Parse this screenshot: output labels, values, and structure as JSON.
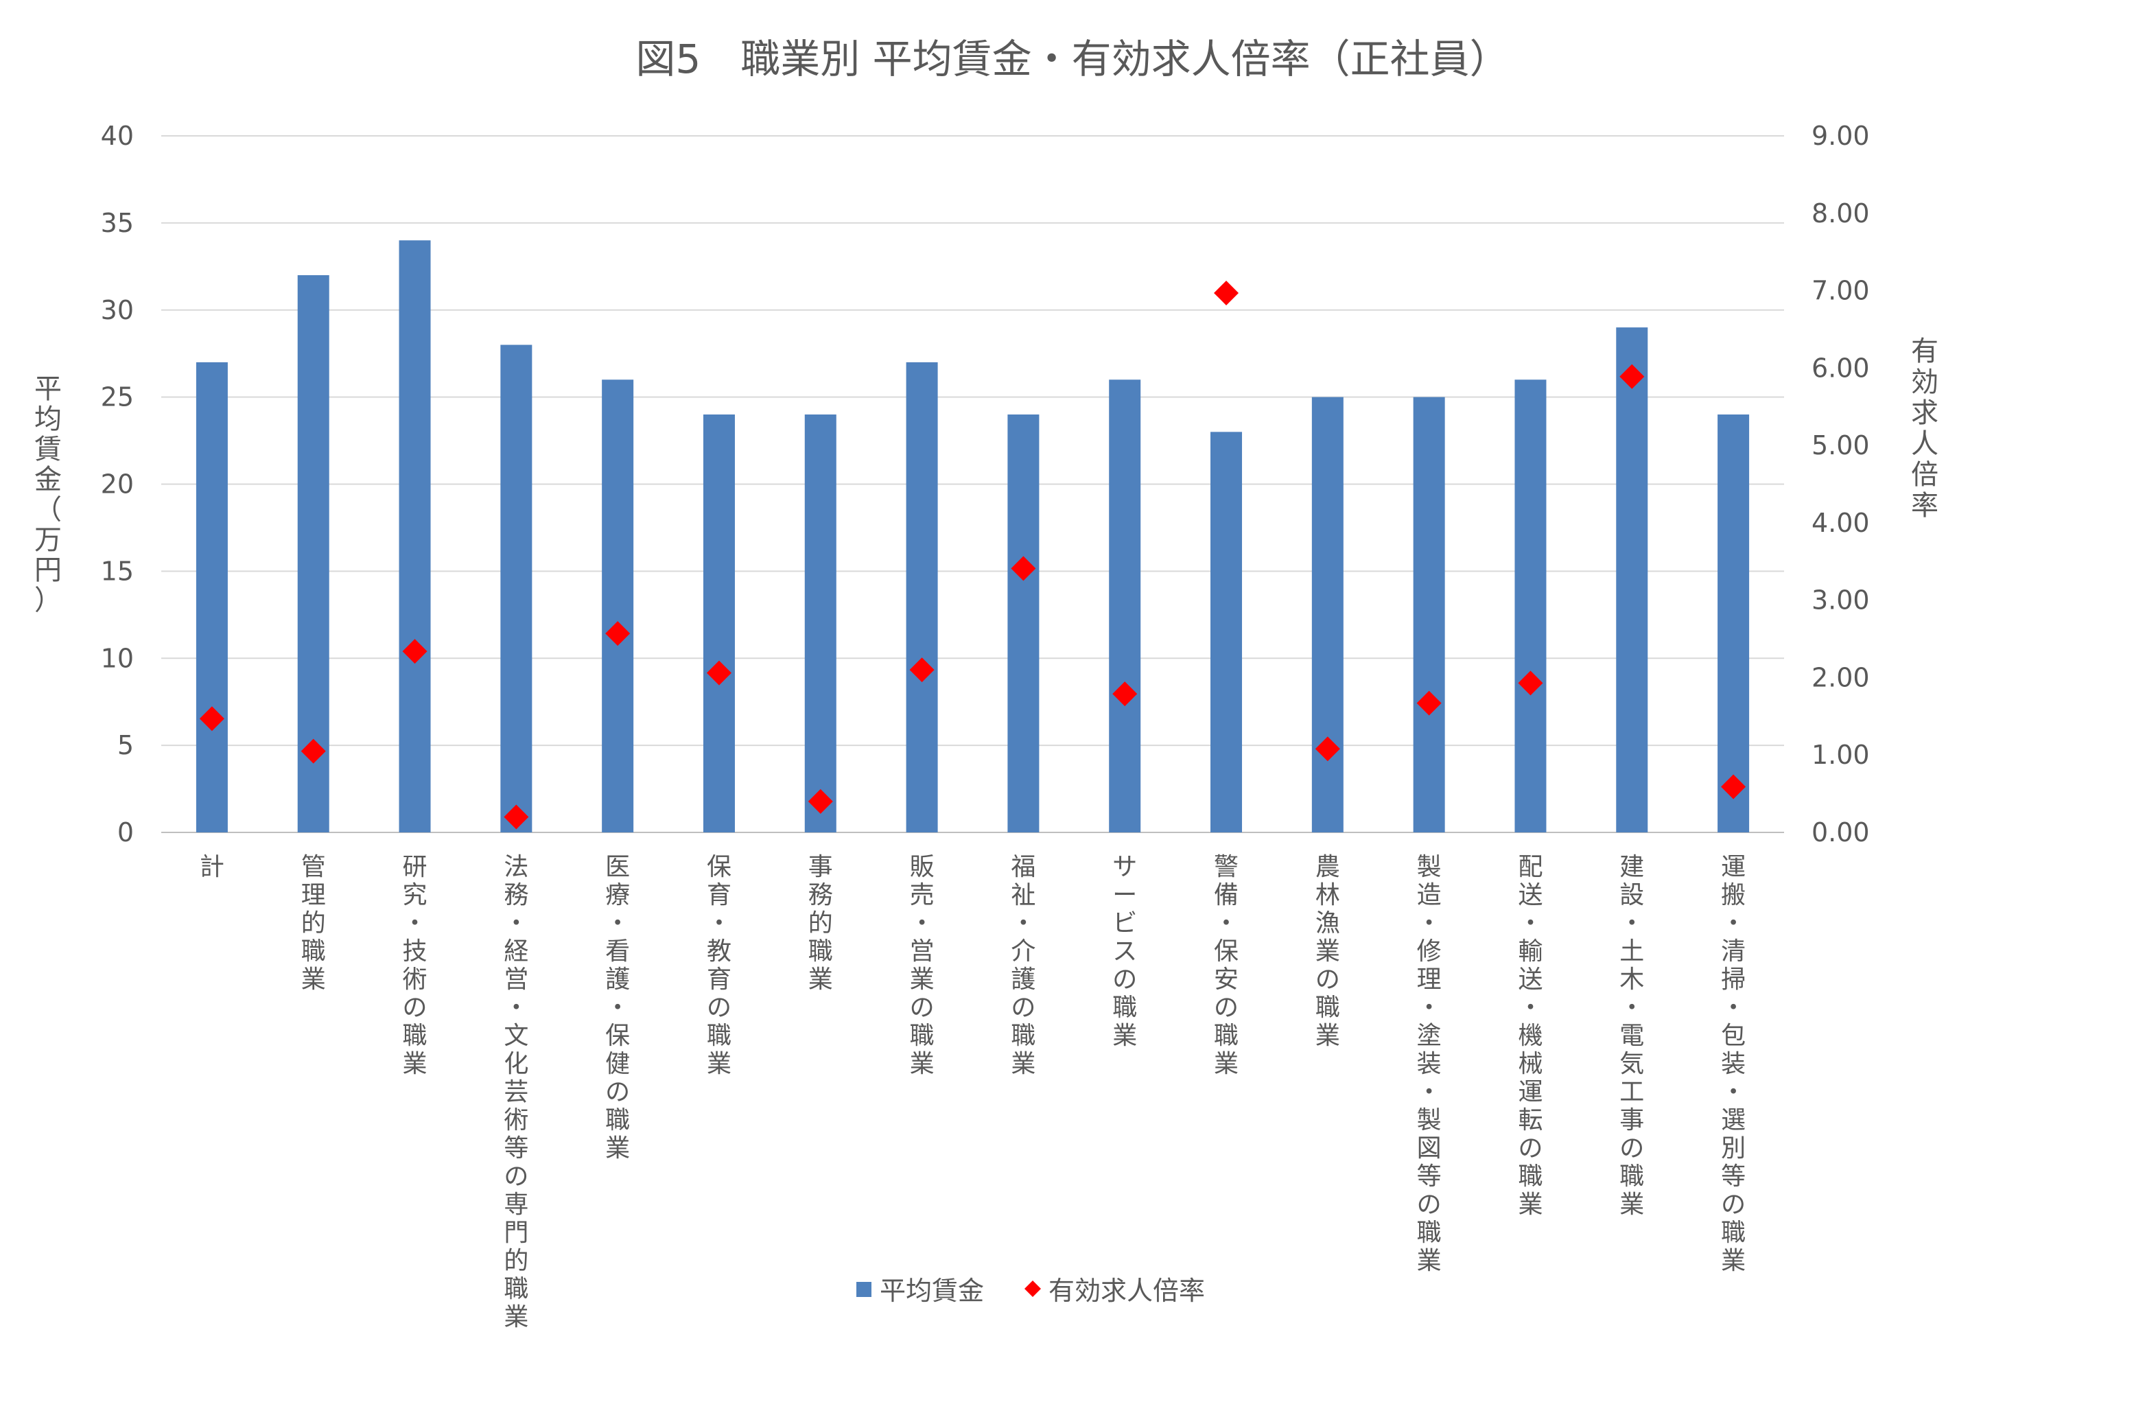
{
  "chart_data": {
    "type": "bar",
    "title": "図5　職業別 平均賃金・有効求人倍率（正社員）",
    "ylabel": "平均賃金（万円）",
    "y2label": "有効求人倍率",
    "ylim": [
      0,
      40
    ],
    "y2lim": [
      0,
      9
    ],
    "yticks": [
      "0",
      "5",
      "10",
      "15",
      "20",
      "25",
      "30",
      "35",
      "40"
    ],
    "y2ticks": [
      "0.00",
      "1.00",
      "2.00",
      "3.00",
      "4.00",
      "5.00",
      "6.00",
      "7.00",
      "8.00",
      "9.00"
    ],
    "grid": true,
    "legend_position": "bottom",
    "categories": [
      "計",
      "管理的職業",
      "研究・技術の職業",
      "法務・経営・文化芸術等の専門的職業",
      "医療・看護・保健の職業",
      "保育・教育の職業",
      "事務的職業",
      "販売・営業の職業",
      "福祉・介護の職業",
      "サービスの職業",
      "警備・保安の職業",
      "農林漁業の職業",
      "製造・修理・塗装・製図等の職業",
      "配送・輸送・機械運転の職業",
      "建設・土木・電気工事の職業",
      "運搬・清掃・包装・選別等の職業"
    ],
    "series": [
      {
        "name": "平均賃金",
        "type": "bar",
        "axis": "left",
        "color": "#4f81bd",
        "values": [
          27,
          32,
          34,
          28,
          26,
          24,
          24,
          27,
          24,
          26,
          23,
          25,
          25,
          26,
          29,
          24
        ]
      },
      {
        "name": "有効求人倍率",
        "type": "scatter",
        "marker": "diamond",
        "axis": "right",
        "color": "#ff0000",
        "values": [
          1.47,
          1.05,
          2.34,
          0.2,
          2.57,
          2.06,
          0.4,
          2.1,
          3.41,
          1.79,
          6.97,
          1.08,
          1.67,
          1.93,
          5.89,
          0.59
        ]
      }
    ]
  }
}
